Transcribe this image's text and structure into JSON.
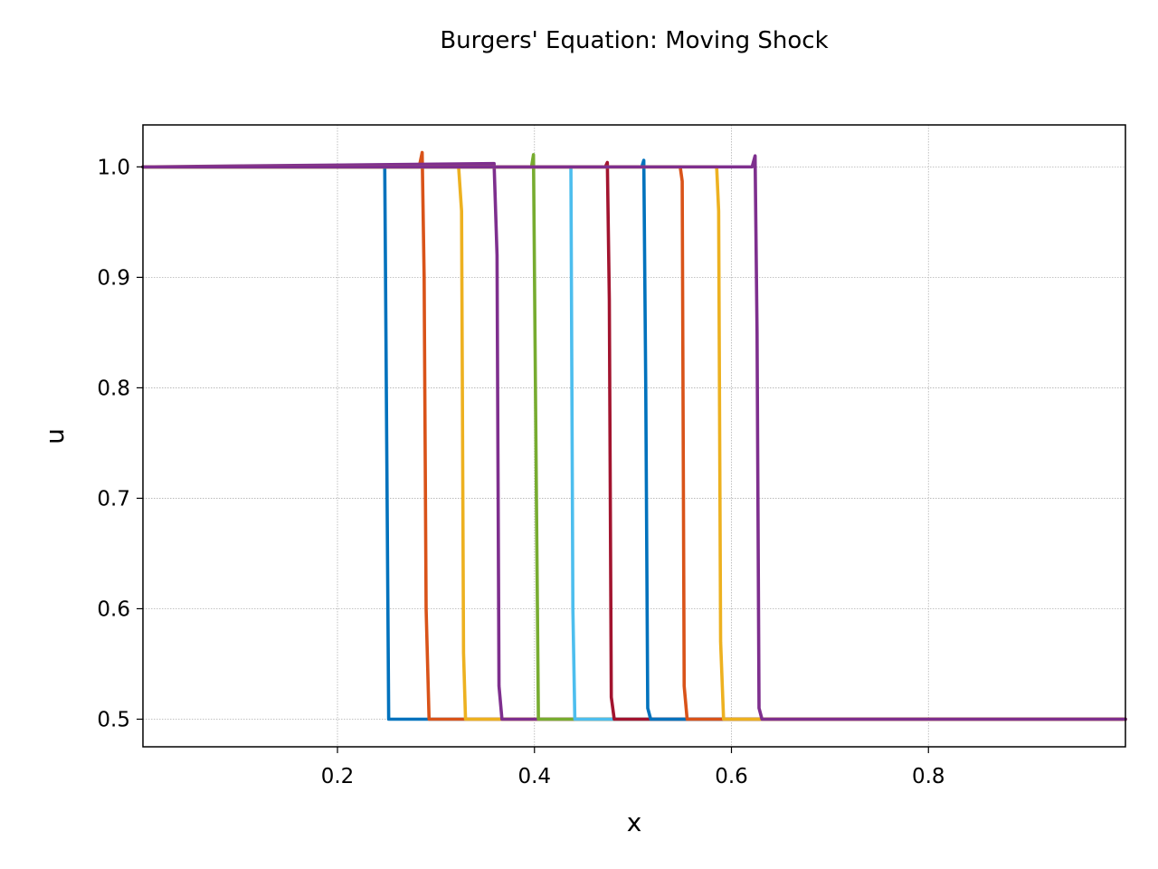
{
  "chart_data": {
    "type": "line",
    "title": "Burgers' Equation: Moving Shock",
    "xlabel": "x",
    "ylabel": "u",
    "xlim": [
      0.0025,
      1.0
    ],
    "ylim": [
      0.475,
      1.038
    ],
    "grid": true,
    "x_ticks": [
      {
        "value": 0.2,
        "label": "0.2"
      },
      {
        "value": 0.4,
        "label": "0.4"
      },
      {
        "value": 0.6,
        "label": "0.6"
      },
      {
        "value": 0.8,
        "label": "0.8"
      }
    ],
    "y_ticks": [
      {
        "value": 0.5,
        "label": "0.5"
      },
      {
        "value": 0.6,
        "label": "0.6"
      },
      {
        "value": 0.7,
        "label": "0.7"
      },
      {
        "value": 0.8,
        "label": "0.8"
      },
      {
        "value": 0.9,
        "label": "0.9"
      },
      {
        "value": 1.0,
        "label": "1.0"
      }
    ],
    "series": [
      {
        "color": "#0072BD",
        "x": [
          0.0025,
          0.248,
          0.25,
          0.252,
          1.0
        ],
        "y": [
          1.0,
          1.0,
          0.75,
          0.5,
          0.5
        ]
      },
      {
        "color": "#D95319",
        "x": [
          0.0025,
          0.283,
          0.286,
          0.288,
          0.29,
          0.293,
          1.0
        ],
        "y": [
          1.0,
          1.0,
          1.013,
          0.9,
          0.6,
          0.5,
          0.5
        ]
      },
      {
        "color": "#EDB120",
        "x": [
          0.0025,
          0.323,
          0.326,
          0.328,
          0.33,
          1.0
        ],
        "y": [
          1.0,
          1.0,
          0.96,
          0.56,
          0.5,
          0.5
        ]
      },
      {
        "color": "#7E2F8E",
        "x": [
          0.0025,
          0.359,
          0.362,
          0.364,
          0.367,
          1.0
        ],
        "y": [
          1.0,
          1.003,
          0.92,
          0.53,
          0.5,
          0.5
        ]
      },
      {
        "color": "#77AC30",
        "x": [
          0.0025,
          0.397,
          0.399,
          0.401,
          0.404,
          1.0
        ],
        "y": [
          1.0,
          1.0,
          1.011,
          0.8,
          0.5,
          0.5
        ]
      },
      {
        "color": "#4DBEEE",
        "x": [
          0.0025,
          0.435,
          0.437,
          0.439,
          0.441,
          1.0
        ],
        "y": [
          1.0,
          1.0,
          1.0,
          0.6,
          0.5,
          0.5
        ]
      },
      {
        "color": "#A2142F",
        "x": [
          0.0025,
          0.472,
          0.474,
          0.476,
          0.478,
          0.481,
          1.0
        ],
        "y": [
          1.0,
          1.0,
          1.004,
          0.88,
          0.52,
          0.5,
          0.5
        ]
      },
      {
        "color": "#0072BD",
        "x": [
          0.0025,
          0.509,
          0.511,
          0.513,
          0.515,
          0.518,
          1.0
        ],
        "y": [
          1.0,
          1.0,
          1.006,
          0.8,
          0.51,
          0.5,
          0.5
        ]
      },
      {
        "color": "#D95319",
        "x": [
          0.0025,
          0.548,
          0.55,
          0.552,
          0.555,
          1.0
        ],
        "y": [
          1.0,
          1.0,
          0.987,
          0.53,
          0.5,
          0.5
        ]
      },
      {
        "color": "#EDB120",
        "x": [
          0.0025,
          0.585,
          0.587,
          0.589,
          0.592,
          1.0
        ],
        "y": [
          1.0,
          1.0,
          0.96,
          0.57,
          0.5,
          0.5
        ]
      },
      {
        "color": "#7E2F8E",
        "x": [
          0.0025,
          0.621,
          0.624,
          0.626,
          0.628,
          0.631,
          1.0
        ],
        "y": [
          1.0,
          1.0,
          1.01,
          0.85,
          0.51,
          0.5,
          0.5
        ]
      }
    ]
  }
}
